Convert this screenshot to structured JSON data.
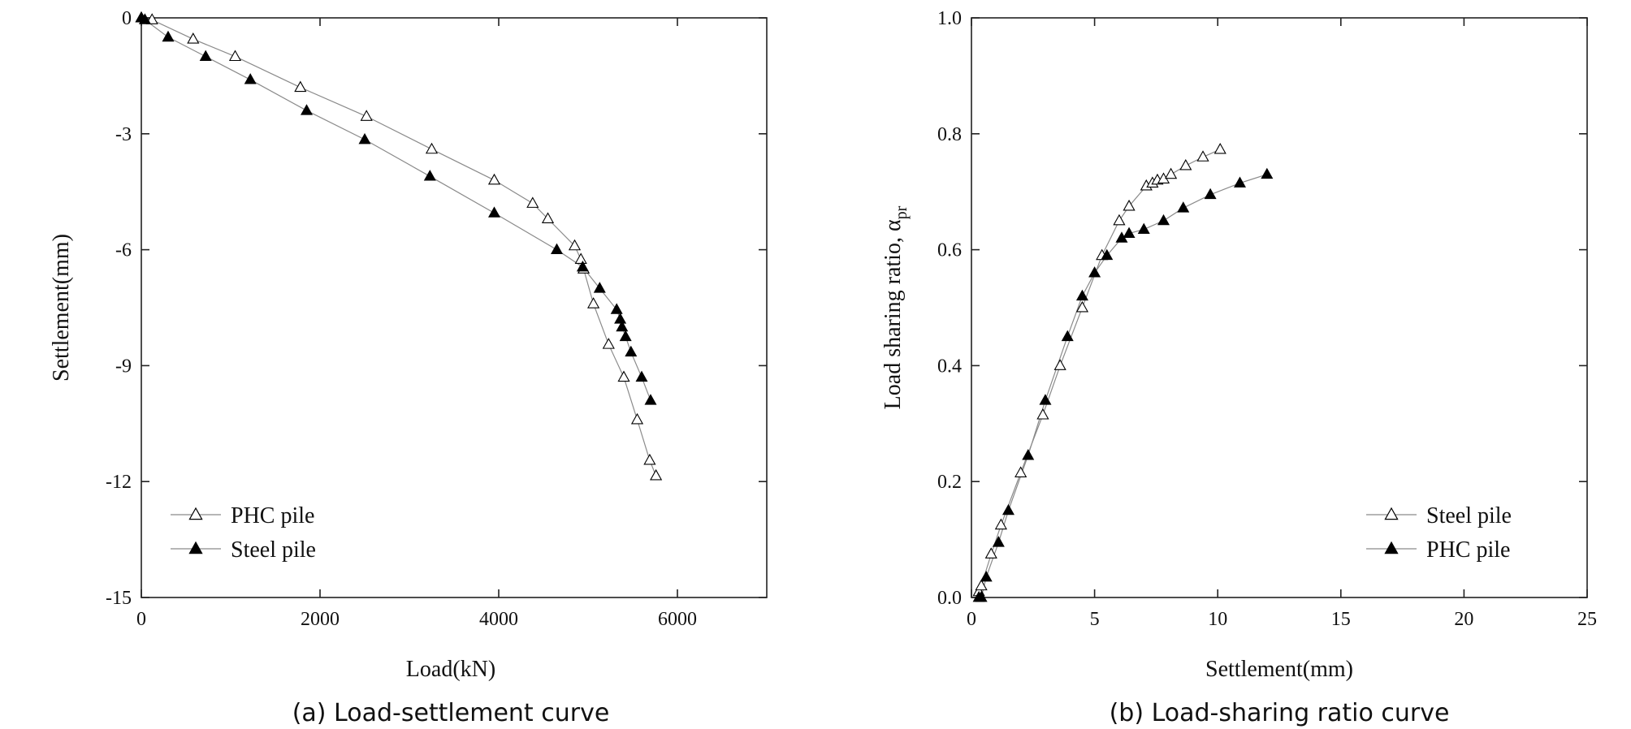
{
  "colors": {
    "axis": "#222222",
    "curve": "#8a8a8a",
    "marker_filled": "#000000",
    "marker_open": "#ffffff"
  },
  "chart_data": [
    {
      "type": "line",
      "caption": "(a) Load-settlement curve",
      "xlabel": "Load(kN)",
      "ylabel": "Settlement(mm)",
      "xlim": [
        0,
        7000
      ],
      "ylim": [
        -15,
        0
      ],
      "xticks": [
        0,
        2000,
        4000,
        6000
      ],
      "yticks": [
        0,
        -3,
        -6,
        -9,
        -12,
        -15
      ],
      "grid": false,
      "legend_placement": "bottom-left",
      "series": [
        {
          "name": "PHC pile",
          "marker": "open-triangle",
          "x": [
            0,
            120,
            580,
            1050,
            1780,
            2520,
            3250,
            3950,
            4380,
            4550,
            4850,
            4920,
            4950,
            5060,
            5230,
            5400,
            5550,
            5690,
            5760
          ],
          "y": [
            0,
            -0.05,
            -0.55,
            -1.0,
            -1.8,
            -2.55,
            -3.4,
            -4.2,
            -4.8,
            -5.2,
            -5.9,
            -6.25,
            -6.5,
            -7.4,
            -8.45,
            -9.3,
            -10.4,
            -11.45,
            -11.85
          ]
        },
        {
          "name": "Steel pile",
          "marker": "filled-triangle",
          "x": [
            0,
            40,
            300,
            720,
            1220,
            1850,
            2500,
            3230,
            3950,
            4650,
            4940,
            5130,
            5320,
            5360,
            5380,
            5420,
            5480,
            5600,
            5700
          ],
          "y": [
            0,
            -0.05,
            -0.5,
            -1.0,
            -1.6,
            -2.4,
            -3.15,
            -4.1,
            -5.05,
            -6.0,
            -6.45,
            -7.0,
            -7.55,
            -7.8,
            -8.0,
            -8.25,
            -8.65,
            -9.3,
            -9.9
          ]
        }
      ]
    },
    {
      "type": "line",
      "caption": "(b) Load-sharing ratio curve",
      "xlabel": "Settlement(mm)",
      "ylabel": "Load sharing ratio, α",
      "ylabel_subscript": "pr",
      "xlim": [
        0,
        25
      ],
      "ylim": [
        0.0,
        1.0
      ],
      "xticks": [
        0,
        5,
        10,
        15,
        20,
        25
      ],
      "yticks": [
        "0.0",
        "0.2",
        "0.4",
        "0.6",
        "0.8",
        "1.0"
      ],
      "grid": false,
      "legend_placement": "bottom-right",
      "series": [
        {
          "name": "Steel pile",
          "marker": "open-triangle",
          "x": [
            0.3,
            0.4,
            0.8,
            1.2,
            2.0,
            2.9,
            3.6,
            4.5,
            5.3,
            6.0,
            6.4,
            7.1,
            7.35,
            7.55,
            7.8,
            8.1,
            8.7,
            9.4,
            10.1
          ],
          "y": [
            0.01,
            0.02,
            0.075,
            0.125,
            0.215,
            0.315,
            0.4,
            0.5,
            0.59,
            0.65,
            0.675,
            0.71,
            0.715,
            0.72,
            0.722,
            0.73,
            0.745,
            0.76,
            0.773
          ]
        },
        {
          "name": "PHC pile",
          "marker": "filled-triangle",
          "x": [
            0.3,
            0.4,
            0.6,
            1.1,
            1.5,
            2.3,
            3.0,
            3.9,
            4.5,
            5.0,
            5.5,
            6.1,
            6.4,
            7.0,
            7.8,
            8.6,
            9.7,
            10.9,
            12.0
          ],
          "y": [
            0.0,
            0.0,
            0.035,
            0.095,
            0.15,
            0.245,
            0.34,
            0.45,
            0.52,
            0.56,
            0.59,
            0.62,
            0.628,
            0.635,
            0.65,
            0.672,
            0.695,
            0.715,
            0.73
          ]
        }
      ]
    }
  ]
}
